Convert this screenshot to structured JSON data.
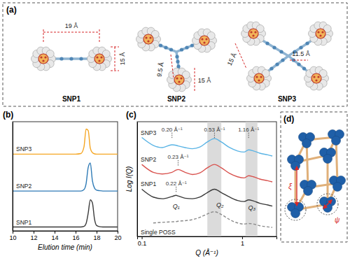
{
  "diagram_a": {
    "label": "(a)",
    "molecules": [
      {
        "name": "SNP1",
        "dims": [
          "19 Å",
          "15 Å"
        ]
      },
      {
        "name": "SNP2",
        "dims": [
          "9.5 Å",
          "15 Å"
        ]
      },
      {
        "name": "SNP3",
        "dims": [
          "15 Å",
          "11.5 Å"
        ]
      }
    ]
  },
  "chart_data": [
    {
      "type": "line",
      "title": "(b)",
      "xlabel": "Elution time (min)",
      "x": [
        10,
        11,
        12,
        13,
        14,
        15,
        16,
        16.5,
        16.8,
        17,
        17.2,
        17.4,
        17.6,
        17.8,
        18,
        18.3,
        18.6,
        19,
        20
      ],
      "series": [
        {
          "name": "SNP1",
          "color": "#3a3a3a",
          "values": [
            0.03,
            0.03,
            0.03,
            0.03,
            0.03,
            0.03,
            0.03,
            0.03,
            0.05,
            0.15,
            0.5,
            0.95,
            0.85,
            0.3,
            0.08,
            0.04,
            0.03,
            0.03,
            0.03
          ]
        },
        {
          "name": "SNP2",
          "color": "#2f7bb6",
          "values": [
            1.25,
            1.25,
            1.25,
            1.25,
            1.25,
            1.25,
            1.25,
            1.25,
            1.3,
            1.5,
            2.05,
            2.2,
            1.6,
            1.35,
            1.28,
            1.26,
            1.25,
            1.25,
            1.25
          ]
        },
        {
          "name": "SNP3",
          "color": "#f5a623",
          "values": [
            2.5,
            2.5,
            2.5,
            2.5,
            2.5,
            2.5,
            2.5,
            2.52,
            2.75,
            3.35,
            3.3,
            2.7,
            2.55,
            2.51,
            2.5,
            2.5,
            2.5,
            2.5,
            2.5
          ]
        }
      ],
      "xlim": [
        10,
        20
      ],
      "xticks": [
        10,
        12,
        14,
        16,
        18,
        20
      ],
      "ylim": [
        -0.1,
        3.6
      ],
      "tick_labels": "x"
    },
    {
      "type": "line",
      "title": "(c)",
      "xlabel": "Q (Å⁻¹)",
      "ylabel": "Log I(Q)",
      "log": "x",
      "x": [
        0.1,
        0.13,
        0.16,
        0.2,
        0.22,
        0.23,
        0.27,
        0.32,
        0.38,
        0.45,
        0.53,
        0.62,
        0.75,
        0.9,
        1.05,
        1.16,
        1.3,
        1.5,
        1.8,
        2.0
      ],
      "series": [
        {
          "name": "SNP3",
          "color": "#5ab4e5",
          "line_style": "solid",
          "values": [
            8.2,
            7.5,
            7.3,
            7.55,
            7.5,
            7.45,
            7.3,
            7.2,
            7.35,
            7.8,
            8.1,
            7.8,
            7.3,
            7.0,
            6.9,
            7.1,
            7.0,
            6.8,
            6.65,
            6.55
          ]
        },
        {
          "name": "SNP2",
          "color": "#d9534f",
          "line_style": "solid",
          "values": [
            5.8,
            5.1,
            4.95,
            5.1,
            5.3,
            5.35,
            5.1,
            4.9,
            5.05,
            5.5,
            5.8,
            5.5,
            5.0,
            4.7,
            4.6,
            4.8,
            4.7,
            4.5,
            4.35,
            4.25
          ]
        },
        {
          "name": "SNP1",
          "color": "#3a3a3a",
          "line_style": "solid",
          "values": [
            3.6,
            2.9,
            2.75,
            2.95,
            3.05,
            3.0,
            2.8,
            2.75,
            2.9,
            3.3,
            3.6,
            3.3,
            2.9,
            2.6,
            2.5,
            2.65,
            2.55,
            2.35,
            2.2,
            2.1
          ]
        },
        {
          "name": "Single POSS",
          "color": "#8a8a8a",
          "line_style": "dashed",
          "values": [
            null,
            0.6,
            0.65,
            0.7,
            0.72,
            0.75,
            0.8,
            0.9,
            1.1,
            1.4,
            1.6,
            1.35,
            0.9,
            0.6,
            0.5,
            0.55,
            0.5,
            0.35,
            0.25,
            0.2
          ]
        }
      ],
      "annotations": [
        {
          "text": "0.20 Å⁻¹",
          "x": 0.2,
          "y": 8.75
        },
        {
          "text": "0.23 Å⁻¹",
          "x": 0.23,
          "y": 6.3
        },
        {
          "text": "0.22 Å⁻¹",
          "x": 0.22,
          "y": 3.95
        },
        {
          "text": "0.53 Å⁻¹",
          "x": 0.53,
          "y": 8.75
        },
        {
          "text": "1.16 Å⁻¹",
          "x": 1.16,
          "y": 8.75
        }
      ],
      "peak_labels": [
        {
          "text": "Q₁",
          "x": 0.22,
          "y": 1.9
        },
        {
          "text": "Q₂",
          "x": 0.6,
          "y": 2.0
        },
        {
          "text": "Q₃",
          "x": 1.25,
          "y": 1.75
        }
      ],
      "highlight_ranges": [
        [
          0.45,
          0.62
        ],
        [
          1.08,
          1.42
        ]
      ],
      "xlim": [
        0.09,
        2.2
      ],
      "xticks": [
        0.1,
        1
      ],
      "ylim": [
        -0.6,
        9.6
      ],
      "tick_labels": "x"
    }
  ],
  "diagram_d": {
    "label": "(d)",
    "symbols": [
      "ξ",
      "ψ"
    ]
  }
}
